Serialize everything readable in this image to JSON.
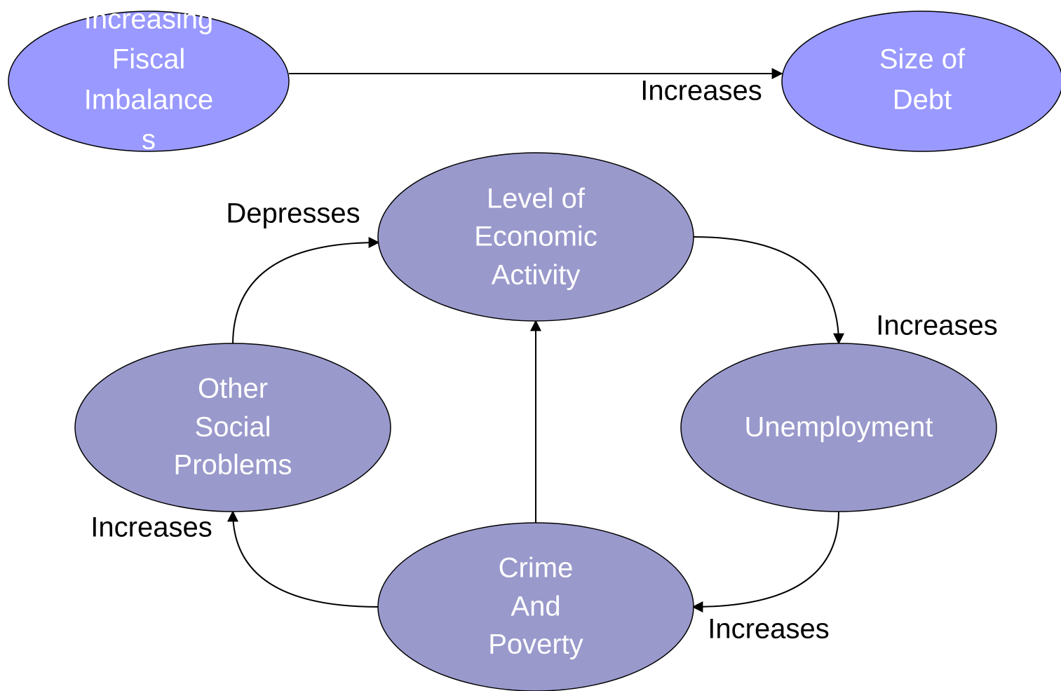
{
  "nodes": [
    {
      "lines": [
        "Increasing",
        "Fiscal",
        "Imbalance",
        "s"
      ]
    },
    {
      "lines": [
        "Size of",
        "Debt"
      ]
    },
    {
      "lines": [
        "Level of",
        "Economic",
        "Activity"
      ]
    },
    {
      "lines": [
        "Unemployment"
      ]
    },
    {
      "lines": [
        "Crime",
        "And",
        "Poverty"
      ]
    },
    {
      "lines": [
        "Other",
        "Social",
        "Problems"
      ]
    }
  ],
  "edges": [
    {
      "label": "Increases"
    },
    {
      "label": "Increases"
    },
    {
      "label": "Increases"
    },
    {
      "label": "Increases"
    },
    {
      "label": "Depresses"
    }
  ]
}
